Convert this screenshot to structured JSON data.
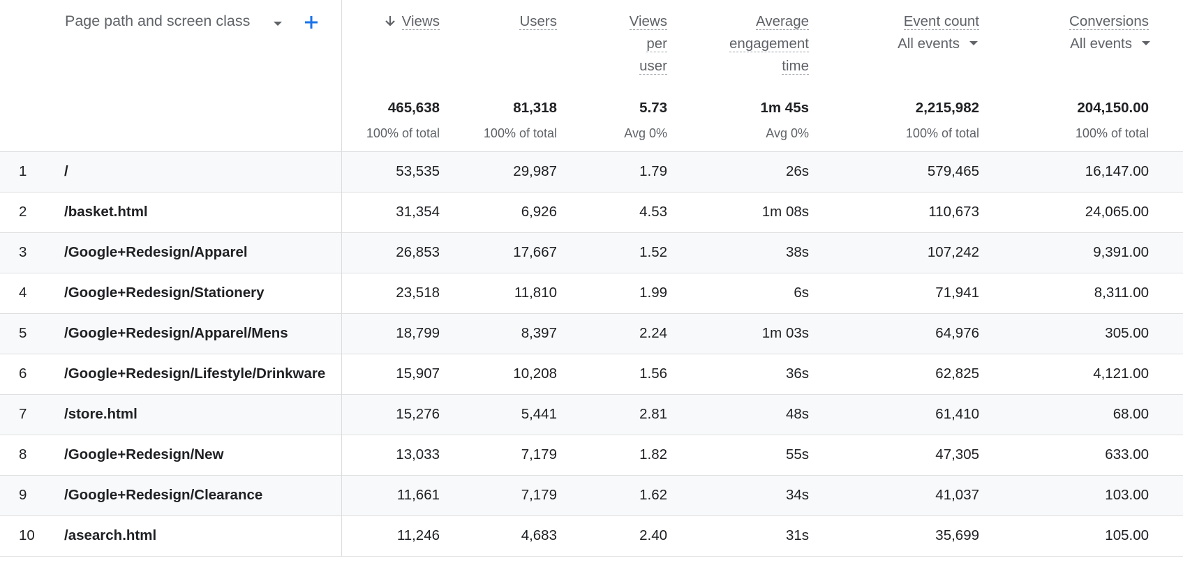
{
  "header": {
    "dimension": "Page path and screen class",
    "columns": [
      {
        "label": "Views",
        "total": "465,638",
        "note": "100% of total"
      },
      {
        "label": "Users",
        "total": "81,318",
        "note": "100% of total"
      },
      {
        "label": "Views per user",
        "total": "5.73",
        "note": "Avg 0%"
      },
      {
        "label": "Average engagement time",
        "total": "1m 45s",
        "note": "Avg 0%"
      },
      {
        "label": "Event count",
        "filter": "All events",
        "total": "2,215,982",
        "note": "100% of total"
      },
      {
        "label": "Conversions",
        "filter": "All events",
        "total": "204,150.00",
        "note": "100% of total"
      }
    ]
  },
  "rows": [
    {
      "index": "1",
      "path": "/",
      "cells": [
        "53,535",
        "29,987",
        "1.79",
        "26s",
        "579,465",
        "16,147.00"
      ]
    },
    {
      "index": "2",
      "path": "/basket.html",
      "cells": [
        "31,354",
        "6,926",
        "4.53",
        "1m 08s",
        "110,673",
        "24,065.00"
      ]
    },
    {
      "index": "3",
      "path": "/Google+Redesign/Apparel",
      "cells": [
        "26,853",
        "17,667",
        "1.52",
        "38s",
        "107,242",
        "9,391.00"
      ]
    },
    {
      "index": "4",
      "path": "/Google+Redesign/Stationery",
      "cells": [
        "23,518",
        "11,810",
        "1.99",
        "6s",
        "71,941",
        "8,311.00"
      ]
    },
    {
      "index": "5",
      "path": "/Google+Redesign/Apparel/Mens",
      "cells": [
        "18,799",
        "8,397",
        "2.24",
        "1m 03s",
        "64,976",
        "305.00"
      ]
    },
    {
      "index": "6",
      "path": "/Google+Redesign/Lifestyle/Drinkware",
      "cells": [
        "15,907",
        "10,208",
        "1.56",
        "36s",
        "62,825",
        "4,121.00"
      ]
    },
    {
      "index": "7",
      "path": "/store.html",
      "cells": [
        "15,276",
        "5,441",
        "2.81",
        "48s",
        "61,410",
        "68.00"
      ]
    },
    {
      "index": "8",
      "path": "/Google+Redesign/New",
      "cells": [
        "13,033",
        "7,179",
        "1.82",
        "55s",
        "47,305",
        "633.00"
      ]
    },
    {
      "index": "9",
      "path": "/Google+Redesign/Clearance",
      "cells": [
        "11,661",
        "7,179",
        "1.62",
        "34s",
        "41,037",
        "103.00"
      ]
    },
    {
      "index": "10",
      "path": "/asearch.html",
      "cells": [
        "11,246",
        "4,683",
        "2.40",
        "31s",
        "35,699",
        "105.00"
      ]
    }
  ]
}
